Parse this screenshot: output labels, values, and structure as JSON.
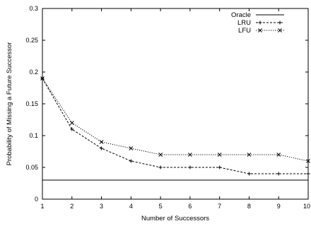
{
  "chart_data": {
    "type": "line",
    "xlabel": "Number of Successors",
    "ylabel": "Probability of Missing a Future Successor",
    "xlim": [
      1,
      10
    ],
    "ylim": [
      0,
      0.3
    ],
    "x": [
      1,
      2,
      3,
      4,
      5,
      6,
      7,
      8,
      9,
      10
    ],
    "x_ticks": [
      "1",
      "2",
      "3",
      "4",
      "5",
      "6",
      "7",
      "8",
      "9",
      "10"
    ],
    "y_ticks": [
      "0",
      "0.05",
      "0.1",
      "0.15",
      "0.2",
      "0.25",
      "0.3"
    ],
    "y_tick_values": [
      0,
      0.05,
      0.1,
      0.15,
      0.2,
      0.25,
      0.3
    ],
    "grid": false,
    "legend_position": "top-right",
    "series": [
      {
        "name": "Oracle",
        "style": "solid",
        "marker": "none",
        "values": [
          0.03,
          0.03,
          0.03,
          0.03,
          0.03,
          0.03,
          0.03,
          0.03,
          0.03,
          0.03
        ]
      },
      {
        "name": "LRU",
        "style": "dashed",
        "marker": "plus",
        "values": [
          0.19,
          0.11,
          0.08,
          0.06,
          0.05,
          0.05,
          0.05,
          0.04,
          0.04,
          0.04
        ]
      },
      {
        "name": "LFU",
        "style": "dotted",
        "marker": "cross",
        "values": [
          0.19,
          0.12,
          0.09,
          0.08,
          0.07,
          0.07,
          0.07,
          0.07,
          0.07,
          0.06
        ]
      }
    ],
    "colors": {
      "line": "#000000",
      "background": "#ffffff"
    }
  }
}
